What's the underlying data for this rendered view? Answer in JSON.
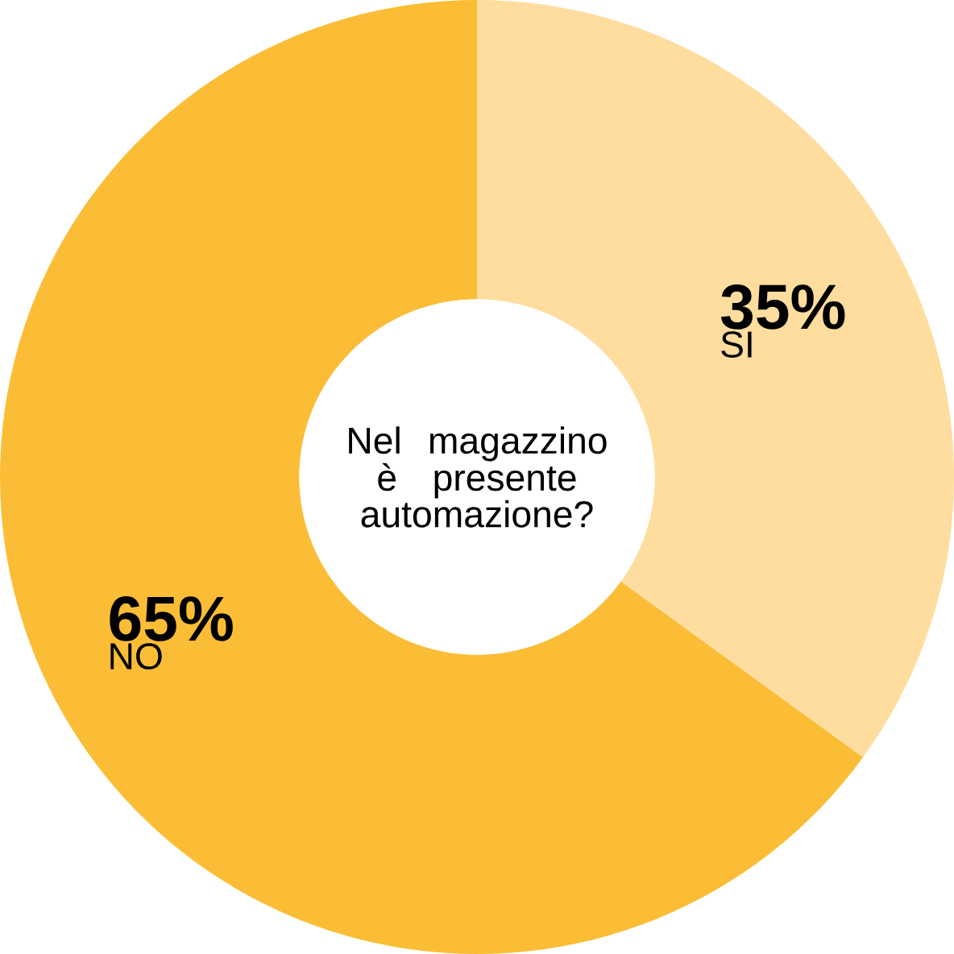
{
  "chart_data": {
    "type": "donut",
    "title": "Nel magazzino è presente automazione?",
    "categories": [
      "SI",
      "NO"
    ],
    "values": [
      35,
      65
    ],
    "value_labels": [
      "35%",
      "65%"
    ],
    "colors": [
      "#fedd9e",
      "#fabd35"
    ]
  }
}
